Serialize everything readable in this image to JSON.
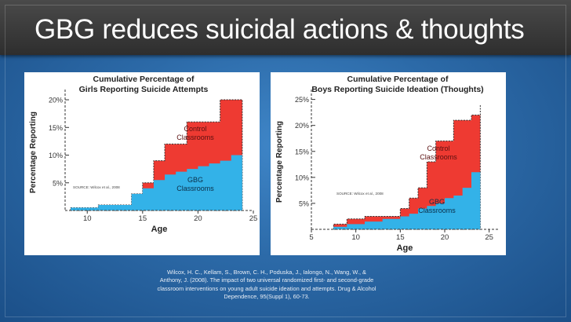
{
  "slide": {
    "title": "GBG reduces suicidal actions & thoughts",
    "citation_lines": [
      "Wilcox, H. C., Kellam, S., Brown, C. H., Poduska, J., Ialongo, N., Wang, W., &",
      "Anthony, J. (2008). The impact of two universal randomized first- and second-grade",
      "classroom interventions on young adult suicide ideation and attempts. Drug & Alcohol",
      "Dependence, 95(Suppl 1), 60-73."
    ],
    "colors": {
      "control": "#ee3a32",
      "gbg": "#33b2e8",
      "title_bar": "#3a3a3a",
      "background": "#2c6aa8"
    }
  },
  "chart_data": [
    {
      "type": "area",
      "title": "Cumulative Percentage of",
      "subtitle": "Girls Reporting Suicide Attempts",
      "xlabel": "Age",
      "ylabel": "Percentage Reporting",
      "source": "SOURCE: Wilcox et al., 2008",
      "xlim": [
        8,
        25
      ],
      "ylim": [
        0,
        21
      ],
      "x_ticks": [
        10,
        15,
        20,
        25
      ],
      "y_ticks": [
        5,
        10,
        15,
        20
      ],
      "y_tick_labels": [
        "5%",
        "10%",
        "15%",
        "20%"
      ],
      "series": [
        {
          "name": "GBG Classrooms",
          "color": "#33b2e8",
          "x": [
            8.5,
            11,
            14,
            15,
            16,
            17,
            18,
            19,
            20,
            21,
            22,
            23,
            24
          ],
          "values": [
            0.5,
            1,
            3,
            4,
            5.5,
            6.5,
            7,
            7.5,
            8,
            8.5,
            9,
            10,
            10
          ]
        },
        {
          "name": "Control Classrooms",
          "color": "#ee3a32",
          "x": [
            8.5,
            11,
            14,
            15,
            16,
            17,
            18,
            19,
            20,
            21,
            22,
            23,
            24
          ],
          "values": [
            0.5,
            1,
            3,
            5,
            9,
            12,
            12,
            16,
            16,
            16,
            20,
            20,
            20
          ]
        }
      ]
    },
    {
      "type": "area",
      "title": "Cumulative Percentage of",
      "subtitle": "Boys Reporting Suicide Ideation (Thoughts)",
      "xlabel": "Age",
      "ylabel": "Percentage Reporting",
      "source": "SOURCE: Wilcox et al., 2008",
      "xlim": [
        5,
        26
      ],
      "ylim": [
        0,
        26
      ],
      "x_ticks": [
        5,
        10,
        15,
        20,
        25
      ],
      "y_ticks": [
        5,
        10,
        15,
        20,
        25
      ],
      "y_tick_labels": [
        "5%",
        "10%",
        "15%",
        "20%",
        "25%"
      ],
      "series": [
        {
          "name": "GBG Classrooms",
          "color": "#33b2e8",
          "x": [
            7.5,
            9,
            11,
            13,
            15,
            16,
            17,
            18,
            19,
            20,
            21,
            22,
            23,
            24
          ],
          "values": [
            0.5,
            1,
            1.5,
            2,
            2.5,
            3,
            4,
            4.5,
            5,
            6,
            6.5,
            8,
            11,
            11
          ]
        },
        {
          "name": "Control Classrooms",
          "color": "#ee3a32",
          "x": [
            7.5,
            9,
            11,
            13,
            15,
            16,
            17,
            18,
            19,
            20,
            21,
            22,
            23,
            24
          ],
          "values": [
            1,
            2,
            2.5,
            2.5,
            4,
            6,
            8,
            13,
            17,
            17,
            21,
            21,
            22,
            24
          ]
        }
      ]
    }
  ]
}
